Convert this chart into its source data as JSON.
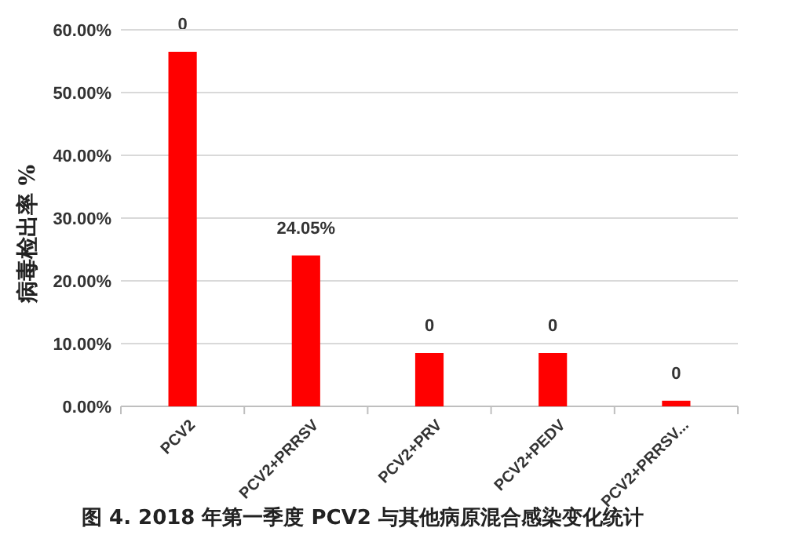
{
  "chart_data": {
    "type": "bar",
    "title": "图 4. 2018 年第一季度 PCV2 与其他病原混合感染变化统计",
    "ylabel": "病毒检出率 %",
    "categories": [
      "PCV2",
      "PCV2+PRRSV",
      "PCV2+PRV",
      "PCV2+PEDV",
      "PCV2+PRRSV..."
    ],
    "values": [
      56.5,
      24.05,
      8.5,
      8.5,
      0.9
    ],
    "color": "#ff0000",
    "value_labels": [
      null,
      "24.05%",
      null,
      null,
      null
    ],
    "annotations": [
      {
        "text": "0",
        "x": "PCV2",
        "y": 56.5
      },
      {
        "text": "0",
        "x": "PCV2+PRV",
        "y": 8.5
      },
      {
        "text": "0",
        "x": "PCV2+PEDV",
        "y": 8.5
      },
      {
        "text": "0",
        "x": "PCV2+PRRSV...",
        "y": 0.9
      }
    ],
    "ylim": [
      0,
      60
    ],
    "yticks": [
      {
        "value": 0,
        "label": "0.00%"
      },
      {
        "value": 10,
        "label": "10.00%"
      },
      {
        "value": 20,
        "label": "20.00%"
      },
      {
        "value": 30,
        "label": "30.00%"
      },
      {
        "value": 40,
        "label": "40.00%"
      },
      {
        "value": 50,
        "label": "50.00%"
      },
      {
        "value": 60,
        "label": "60.00%"
      }
    ],
    "grid": "y"
  }
}
